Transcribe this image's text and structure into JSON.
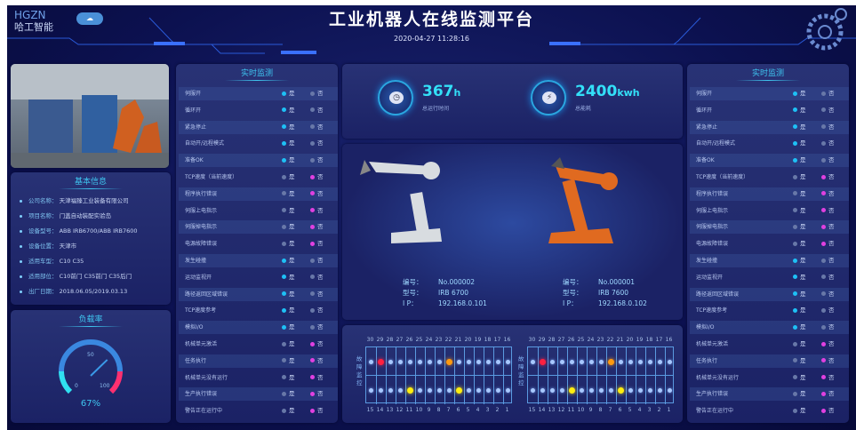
{
  "header": {
    "logo_text": "HGZN",
    "logo_cn": "哈工智能",
    "title": "工业机器人在线监测平台",
    "datetime": "2020-04-27 11:28:16"
  },
  "basic_info": {
    "title": "基本信息",
    "items": [
      {
        "key": "公司名称：",
        "value": "天津福臻工业装备有限公司"
      },
      {
        "key": "项目名称：",
        "value": "门盖自动装配实验岛"
      },
      {
        "key": "设备型号：",
        "value": "ABB IRB6700/ABB IRB7600"
      },
      {
        "key": "设备位置：",
        "value": "天津市"
      },
      {
        "key": "适用车型：",
        "value": "C10 C35"
      },
      {
        "key": "适用部位：",
        "value": "C10前门 C35前门 C35后门"
      },
      {
        "key": "出厂日期：",
        "value": "2018.06.05/2019.03.13"
      }
    ]
  },
  "load": {
    "title": "负载率",
    "value": 67,
    "display": "67%",
    "ticks": [
      "0",
      "50",
      "100"
    ]
  },
  "monitor": {
    "title": "实时监测",
    "yes": "是",
    "no": "否",
    "colors": {
      "yes": "#1ec0f5",
      "no": "#e040e0",
      "off": "#6878a8"
    },
    "rows": [
      {
        "label": "伺服开",
        "state": "yes"
      },
      {
        "label": "循环开",
        "state": "yes"
      },
      {
        "label": "紧急停止",
        "state": "yes"
      },
      {
        "label": "自动开/远程模式",
        "state": "yes"
      },
      {
        "label": "准备OK",
        "state": "yes"
      },
      {
        "label": "TCP速度（当前速度）",
        "state": "no"
      },
      {
        "label": "程序执行错误",
        "state": "no"
      },
      {
        "label": "伺服上电指示",
        "state": "no"
      },
      {
        "label": "伺服掉电指示",
        "state": "no"
      },
      {
        "label": "电源故障错误",
        "state": "no"
      },
      {
        "label": "发生碰撞",
        "state": "yes"
      },
      {
        "label": "运动监视开",
        "state": "yes"
      },
      {
        "label": "路径返回区域错误",
        "state": "yes"
      },
      {
        "label": "TCP速度参考",
        "state": "yes"
      },
      {
        "label": "模拟I/O",
        "state": "yes"
      },
      {
        "label": "机械单元激活",
        "state": "no"
      },
      {
        "label": "任务执行",
        "state": "no"
      },
      {
        "label": "机械单元没有运行",
        "state": "no"
      },
      {
        "label": "生产执行错误",
        "state": "no"
      },
      {
        "label": "警告正在运行中",
        "state": "no"
      }
    ]
  },
  "stats": [
    {
      "value": "367",
      "unit": "h",
      "label": "总运行时间",
      "icon": "clock-icon"
    },
    {
      "value": "2400",
      "unit": "kwh",
      "label": "总能耗",
      "icon": "lightning-icon"
    }
  ],
  "robots": [
    {
      "labels": [
        "编号：",
        "型号：",
        "I P："
      ],
      "id": "No.000002",
      "model": "IRB 6700",
      "ip": "192.168.0.101",
      "color": "#d8d8d8"
    },
    {
      "labels": [
        "编号：",
        "型号：",
        "I P："
      ],
      "id": "No.000001",
      "model": "IRB 7600",
      "ip": "192.168.0.102",
      "color": "#e06a20"
    }
  ],
  "faults": {
    "label": "故障监控",
    "top": [
      "30",
      "29",
      "28",
      "27",
      "26",
      "25",
      "24",
      "23",
      "22",
      "21",
      "20",
      "19",
      "18",
      "17",
      "16"
    ],
    "bottom": [
      "15",
      "14",
      "13",
      "12",
      "11",
      "10",
      "9",
      "8",
      "7",
      "6",
      "5",
      "4",
      "3",
      "2",
      "1"
    ],
    "panels": [
      {
        "alerts": {
          "29": "#ff2040",
          "22": "#ff9a10",
          "11": "#ffee10",
          "6": "#ffee10"
        }
      },
      {
        "alerts": {
          "29": "#ff2040",
          "22": "#ff9a10",
          "11": "#ffee10",
          "6": "#ffee10"
        }
      }
    ]
  }
}
